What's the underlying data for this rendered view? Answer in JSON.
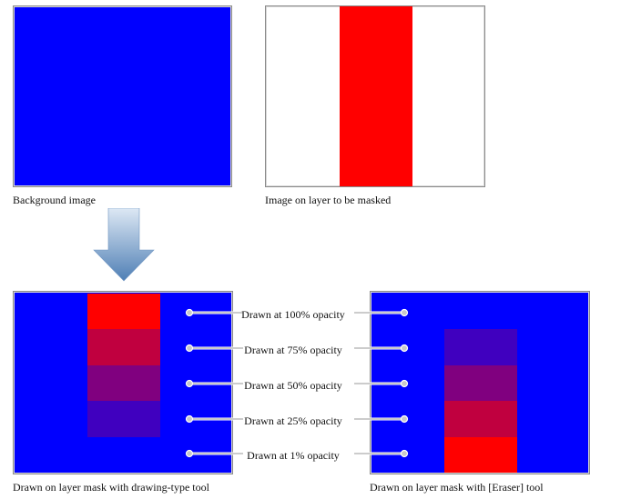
{
  "colors": {
    "blue": "#0000ff",
    "red": "#ff0000",
    "white": "#ffffff",
    "arrow_top": "#dde8f4",
    "arrow_bottom": "#4f7fb5",
    "connector": "#9a9a9a",
    "dot_fill": "#c8c8c8"
  },
  "top_left": {
    "caption": "Background image"
  },
  "top_right": {
    "caption": "Image on layer to be masked"
  },
  "arrow": {
    "icon": "down-arrow-icon"
  },
  "bottom_left": {
    "caption": "Drawn on layer mask with drawing-type tool",
    "strips": [
      {
        "opacity_percent": 100,
        "color": "#ff0000"
      },
      {
        "opacity_percent": 75,
        "color": "#c0003f"
      },
      {
        "opacity_percent": 50,
        "color": "#80007f"
      },
      {
        "opacity_percent": 25,
        "color": "#4000bf"
      },
      {
        "opacity_percent": 1,
        "color": "#0000ff"
      }
    ]
  },
  "bottom_right": {
    "caption": "Drawn on layer mask with [Eraser] tool",
    "strips": [
      {
        "opacity_percent": 100,
        "color": "#0000ff"
      },
      {
        "opacity_percent": 75,
        "color": "#4000bf"
      },
      {
        "opacity_percent": 50,
        "color": "#80007f"
      },
      {
        "opacity_percent": 25,
        "color": "#c0003f"
      },
      {
        "opacity_percent": 1,
        "color": "#ff0000"
      }
    ]
  },
  "opacity_labels": [
    "Drawn at 100% opacity",
    "Drawn at 75% opacity",
    "Drawn at 50% opacity",
    "Drawn at 25% opacity",
    "Drawn at 1% opacity"
  ]
}
